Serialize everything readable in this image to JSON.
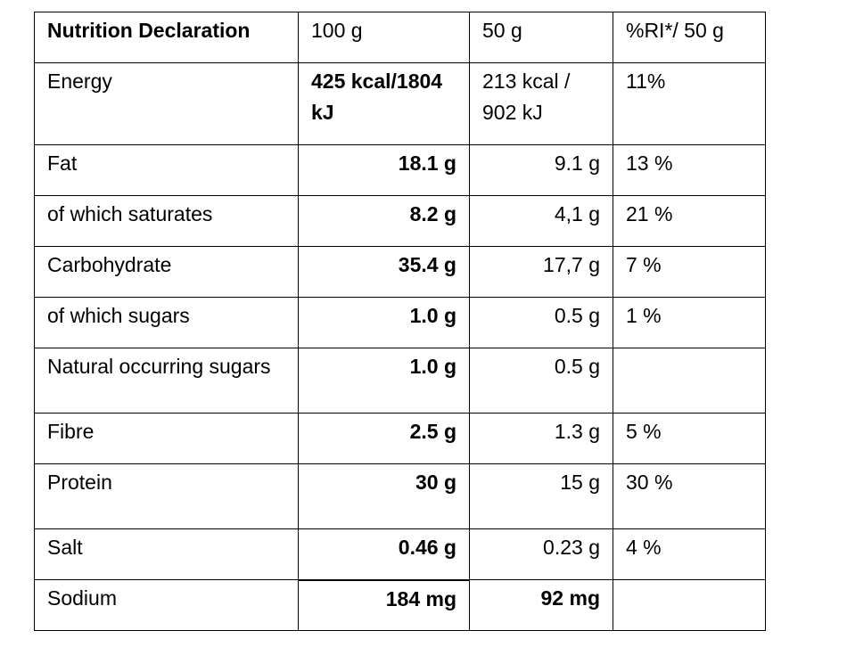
{
  "table": {
    "header": {
      "label": "Nutrition Declaration",
      "col_100g": "100 g",
      "col_50g": "50 g",
      "col_ri": "%RI*/ 50 g"
    },
    "rows": [
      {
        "label": "Energy",
        "per100": "425 kcal/1804 kJ",
        "per50": "213 kcal / 902 kJ",
        "ri": "11%"
      },
      {
        "label": "Fat",
        "per100": "18.1 g",
        "per50": "9.1 g",
        "ri": "13 %"
      },
      {
        "label": "of which saturates",
        "per100": "8.2 g",
        "per50": "4,1 g",
        "ri": "21 %"
      },
      {
        "label": "Carbohydrate",
        "per100": "35.4 g",
        "per50": "17,7 g",
        "ri": "7 %"
      },
      {
        "label": "of which sugars",
        "per100": "1.0 g",
        "per50": "0.5 g",
        "ri": "1 %"
      },
      {
        "label": "Natural occurring sugars",
        "per100": "1.0 g",
        "per50": "0.5 g",
        "ri": ""
      },
      {
        "label": "Fibre",
        "per100": "2.5 g",
        "per50": "1.3 g",
        "ri": "5 %"
      },
      {
        "label": "Protein",
        "per100": "30 g",
        "per50": "15 g",
        "ri": "30 %"
      },
      {
        "label": "Salt",
        "per100": "0.46 g",
        "per50": "0.23 g",
        "ri": "4 %"
      },
      {
        "label": "Sodium",
        "per100": "184 mg",
        "per50": "92 mg",
        "ri": ""
      }
    ]
  }
}
